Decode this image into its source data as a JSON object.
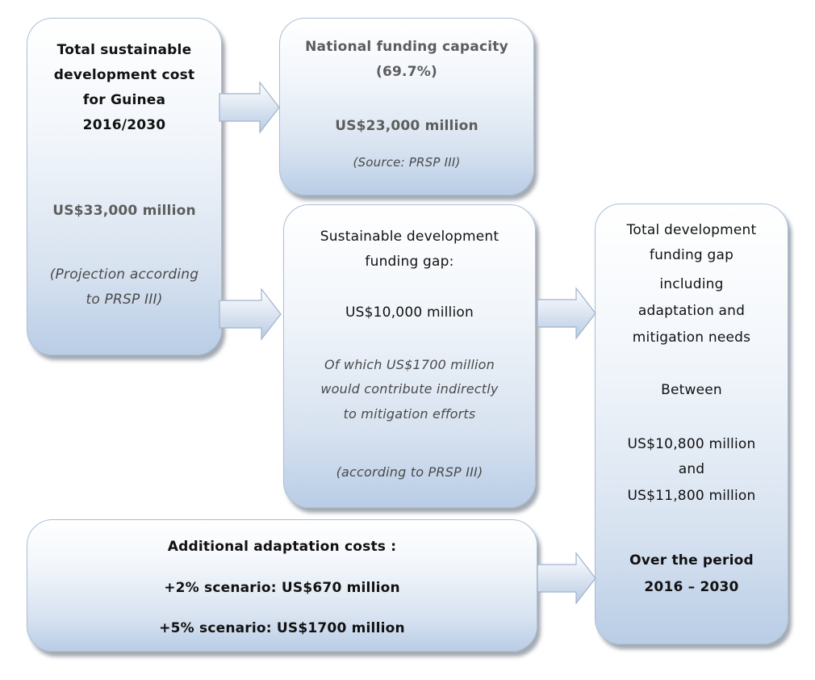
{
  "total_cost": {
    "title_lines": [
      "Total sustainable",
      "development cost",
      "for Guinea",
      "2016/2030"
    ],
    "amount": "US$33,000 million",
    "source_lines": [
      "(Projection according",
      "to PRSP III)"
    ]
  },
  "national_funding": {
    "title_lines": [
      "National funding capacity",
      "(69.7%)"
    ],
    "amount": "US$23,000 million",
    "source": "(Source: PRSP III)"
  },
  "funding_gap": {
    "title_lines": [
      "Sustainable development",
      "funding gap:"
    ],
    "amount": "US$10,000 million",
    "note_lines": [
      "Of which US$1700 million",
      "would contribute indirectly",
      "to mitigation efforts"
    ],
    "source": "(according to PRSP III)"
  },
  "adaptation": {
    "title": "Additional adaptation costs :",
    "scenarios": [
      "+2% scenario: US$670 million",
      "+5% scenario: US$1700 million"
    ]
  },
  "total_gap": {
    "title_lines": [
      "Total development",
      "funding gap",
      "including",
      "adaptation and",
      "mitigation needs"
    ],
    "between": "Between",
    "range_lines": [
      "US$10,800 million",
      "and",
      "US$11,800 million"
    ],
    "period_lines": [
      "Over the period",
      "2016 – 2030"
    ]
  }
}
